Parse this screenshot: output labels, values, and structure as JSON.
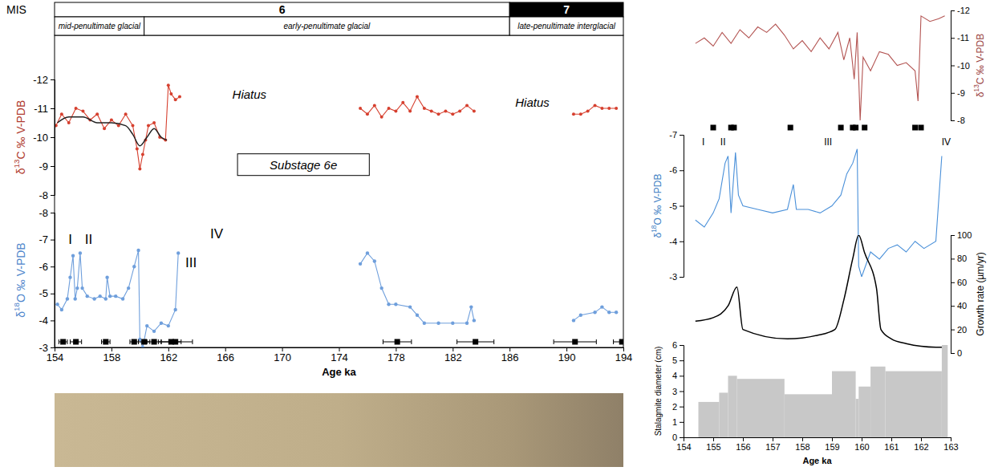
{
  "chart_data": [
    {
      "type": "timeline",
      "title": "MIS",
      "xlim": [
        154,
        194
      ],
      "stages": [
        {
          "label": "6",
          "start": 154,
          "end": 186,
          "color": "#ffffff"
        },
        {
          "label": "7",
          "start": 186,
          "end": 194,
          "color": "#000000"
        }
      ],
      "substages": [
        {
          "label": "mid-penultimate glacial",
          "start": 154,
          "end": 160.3
        },
        {
          "label": "early-penultimate glacial",
          "start": 160.3,
          "end": 186
        },
        {
          "label": "late-penultimate interglacial",
          "start": 186,
          "end": 194
        }
      ]
    },
    {
      "type": "line",
      "y_label": "δ13C ‰ V-PDB",
      "xlim": [
        154,
        194
      ],
      "ylim": [
        -8,
        -12
      ],
      "yticks": [
        -12,
        -11,
        -10,
        -9,
        -8
      ],
      "series": [
        {
          "color": "#d6402f",
          "marker": "circle",
          "line_style": "solid",
          "x": [
            154.1,
            154.5,
            155.0,
            155.5,
            156.0,
            156.5,
            157.0,
            157.5,
            158.0,
            158.5,
            159.0,
            159.5,
            159.8,
            160.0,
            160.2,
            160.4,
            160.6,
            161.0,
            161.4,
            161.8,
            162.0,
            162.2,
            162.5,
            162.8,
            169,
            175.5,
            176.0,
            176.5,
            177.0,
            177.5,
            178.0,
            178.5,
            179.0,
            179.5,
            180.0,
            180.5,
            181.0,
            181.5,
            182.0,
            182.5,
            183.0,
            183.5,
            187,
            190.5,
            191.0,
            191.5,
            192.0,
            192.5,
            193.0,
            193.5
          ],
          "values": [
            -10.4,
            -10.8,
            -10.5,
            -11.0,
            -10.9,
            -10.6,
            -10.8,
            -10.3,
            -10.6,
            -10.4,
            -10.8,
            -10.4,
            -9.6,
            -8.9,
            -9.4,
            -9.9,
            -10.4,
            -10.5,
            -10.0,
            -9.9,
            -11.8,
            -11.5,
            -11.3,
            -11.4,
            null,
            -11.0,
            -10.8,
            -11.1,
            -10.7,
            -11.0,
            -10.9,
            -11.2,
            -10.9,
            -11.4,
            -11.0,
            -10.9,
            -10.8,
            -10.9,
            -10.8,
            -10.9,
            -11.1,
            -10.9,
            null,
            -10.8,
            -10.8,
            -10.9,
            -11.1,
            -11.0,
            -11.0,
            -11.0
          ]
        },
        {
          "color": "#222222",
          "line_style": "smooth",
          "x": [
            154.2,
            155.0,
            156.0,
            157.0,
            158.0,
            159.0,
            159.5,
            160.0,
            160.5,
            161.0,
            161.5,
            161.9
          ],
          "values": [
            -10.5,
            -10.7,
            -10.7,
            -10.5,
            -10.5,
            -10.4,
            -10.1,
            -9.7,
            -10.0,
            -10.3,
            -10.0,
            -9.9
          ]
        }
      ],
      "notes": [
        {
          "text": "Hiatus",
          "x": 167.7,
          "y": -11.5
        },
        {
          "text": "Hiatus",
          "x": 187.6,
          "y": -11.2
        }
      ],
      "boxed_notes": [
        {
          "text": "Substage 6e",
          "x": 171.5,
          "y": -9.05
        }
      ]
    },
    {
      "type": "line",
      "x_label": "Age ka",
      "y_label": "δ18O ‰ V-PDB",
      "xlim": [
        154,
        194
      ],
      "xticks": [
        154,
        158,
        162,
        166,
        170,
        174,
        178,
        182,
        186,
        190,
        194
      ],
      "ylim": [
        -3,
        -8
      ],
      "yticks": [
        -8,
        -7,
        -6,
        -5,
        -4,
        -3
      ],
      "series": [
        {
          "color": "#6f9fdc",
          "marker": "circle",
          "line_style": "solid",
          "x": [
            154.2,
            154.5,
            154.9,
            155.1,
            155.3,
            155.45,
            155.6,
            155.8,
            155.95,
            156.3,
            156.8,
            157.2,
            157.6,
            157.7,
            157.9,
            158.3,
            158.8,
            159.2,
            159.6,
            159.9,
            160.0,
            160.2,
            160.5,
            161.0,
            161.5,
            162.0,
            162.5,
            162.7,
            169,
            175.5,
            176.0,
            176.5,
            177.0,
            177.5,
            178.0,
            179.0,
            179.5,
            180.0,
            181.0,
            182.0,
            183.0,
            183.3,
            183.5,
            187,
            190.5,
            191.0,
            192.0,
            192.5,
            193.0,
            193.5
          ],
          "values": [
            -4.6,
            -4.4,
            -4.8,
            -5.6,
            -6.4,
            -4.8,
            -5.2,
            -6.5,
            -5.2,
            -4.9,
            -4.8,
            -4.9,
            -4.8,
            -5.6,
            -4.9,
            -4.9,
            -4.8,
            -5.2,
            -6.0,
            -6.6,
            -3.3,
            -3.0,
            -3.8,
            -3.6,
            -3.9,
            -3.8,
            -4.4,
            -6.5,
            null,
            -6.1,
            -6.5,
            -6.2,
            -5.2,
            -4.6,
            -4.6,
            -4.5,
            -4.2,
            -3.9,
            -3.9,
            -3.9,
            -3.9,
            -4.5,
            -4.0,
            null,
            -4.0,
            -4.2,
            -4.3,
            -4.5,
            -4.3,
            -4.3
          ]
        }
      ],
      "dates": {
        "x": [
          154.6,
          155.5,
          157.6,
          159.6,
          160.3,
          161.0,
          162.2,
          162.5,
          178.1,
          183.6,
          190.6,
          193.9
        ],
        "errors": [
          0.3,
          0.4,
          0.3,
          0.3,
          0.4,
          0.5,
          0.7,
          1.2,
          1.0,
          1.3,
          1.5,
          0.6
        ]
      },
      "annotations": [
        {
          "text": "I",
          "x": 155.1,
          "y": -7.0
        },
        {
          "text": "II",
          "x": 156.4,
          "y": -7.0
        },
        {
          "text": "III",
          "x": 163.6,
          "y": -6.15
        },
        {
          "text": "IV",
          "x": 165.4,
          "y": -7.2
        }
      ]
    },
    {
      "type": "line",
      "y2_label": "δ13C ‰ V-PDB",
      "xlim": [
        154,
        163
      ],
      "y2lim": [
        -8,
        -12
      ],
      "y2ticks": [
        -12,
        -11,
        -10,
        -9,
        -8
      ],
      "series": [
        {
          "color": "#b35452",
          "axis": "y2",
          "line_style": "solid",
          "x": [
            154.4,
            154.7,
            155.0,
            155.3,
            155.6,
            155.9,
            156.2,
            156.5,
            156.8,
            157.1,
            157.4,
            157.7,
            158.0,
            158.3,
            158.6,
            158.9,
            159.2,
            159.4,
            159.6,
            159.75,
            159.85,
            159.95,
            160.05,
            160.3,
            160.6,
            160.9,
            161.2,
            161.5,
            161.8,
            161.9,
            162.0,
            162.3,
            162.6,
            162.8
          ],
          "values": [
            -10.8,
            -11.0,
            -10.7,
            -11.2,
            -10.8,
            -11.3,
            -11.0,
            -11.4,
            -11.2,
            -11.5,
            -11.1,
            -10.6,
            -10.9,
            -10.5,
            -11.0,
            -10.6,
            -11.2,
            -10.2,
            -11.0,
            -9.5,
            -11.2,
            -8.0,
            -10.3,
            -9.8,
            -10.5,
            -10.4,
            -10.0,
            -10.1,
            -9.8,
            -8.7,
            -11.8,
            -11.6,
            -11.7,
            -11.8
          ]
        }
      ],
      "dates": {
        "x": [
          155.0,
          155.6,
          155.7,
          157.6,
          159.3,
          159.7,
          159.8,
          160.1,
          161.8,
          162.0
        ]
      }
    },
    {
      "type": "line",
      "y_label": "δ18O ‰ V-PDB",
      "xlim": [
        154,
        163
      ],
      "ylim": [
        -3,
        -7
      ],
      "yticks": [
        -7,
        -6,
        -5,
        -4,
        -3
      ],
      "series": [
        {
          "color": "#4a90d9",
          "line_style": "solid",
          "x": [
            154.4,
            154.7,
            155.0,
            155.2,
            155.4,
            155.5,
            155.6,
            155.75,
            155.85,
            156.0,
            156.5,
            157.0,
            157.5,
            157.7,
            157.8,
            158.2,
            158.6,
            159.0,
            159.3,
            159.5,
            159.7,
            159.85,
            159.9,
            160.0,
            160.3,
            160.6,
            160.9,
            161.2,
            161.5,
            161.8,
            162.1,
            162.5,
            162.7
          ],
          "values": [
            -4.6,
            -4.4,
            -4.8,
            -5.2,
            -6.2,
            -6.4,
            -4.8,
            -6.5,
            -5.3,
            -5.0,
            -4.9,
            -4.8,
            -4.9,
            -5.6,
            -4.9,
            -4.9,
            -4.8,
            -5.0,
            -5.3,
            -5.9,
            -6.2,
            -6.6,
            -3.3,
            -3.0,
            -3.7,
            -3.5,
            -3.8,
            -3.9,
            -3.7,
            -4.0,
            -3.8,
            -4.0,
            -6.4
          ]
        }
      ],
      "annotations": [
        {
          "text": "I",
          "x": 154.67,
          "y": -6.8
        },
        {
          "text": "II",
          "x": 155.33,
          "y": -6.8
        },
        {
          "text": "III",
          "x": 158.87,
          "y": -6.8
        },
        {
          "text": "IV",
          "x": 162.85,
          "y": -6.8
        }
      ]
    },
    {
      "type": "line",
      "y2_label": "Growth rate (µm/yr)",
      "xlim": [
        154,
        163
      ],
      "y2lim": [
        0,
        100
      ],
      "y2ticks": [
        0,
        20,
        40,
        60,
        80,
        100
      ],
      "series": [
        {
          "color": "#000000",
          "axis": "y2",
          "line_style": "smooth",
          "x": [
            154.4,
            155.0,
            155.5,
            155.8,
            156.0,
            157.5,
            158.5,
            159.1,
            159.4,
            159.7,
            159.9,
            160.1,
            160.5,
            160.65,
            161.0,
            161.5,
            162.5,
            162.8
          ],
          "values": [
            27,
            30,
            40,
            56,
            20,
            12,
            15,
            20,
            45,
            80,
            100,
            85,
            55,
            20,
            12,
            8,
            5,
            5
          ]
        }
      ]
    },
    {
      "type": "bar",
      "x_label": "Age ka",
      "y_label": "Stalagmite diameter (cm)",
      "xlim": [
        154,
        163
      ],
      "xticks": [
        154,
        155,
        156,
        157,
        158,
        159,
        160,
        161,
        162,
        163
      ],
      "ylim": [
        0,
        6
      ],
      "yticks": [
        0,
        1,
        2,
        3,
        4,
        5,
        6
      ],
      "series": [
        {
          "color": "#c8c8c8",
          "x_start": [
            154.5,
            155.2,
            155.5,
            155.8,
            157.4,
            159.0,
            159.8,
            159.9,
            160.3,
            160.8,
            162.7
          ],
          "x_end": [
            155.2,
            155.5,
            155.8,
            157.4,
            159.0,
            159.8,
            159.9,
            160.3,
            160.8,
            162.7,
            162.9
          ],
          "values": [
            2.3,
            2.9,
            4.0,
            3.8,
            2.8,
            4.3,
            2.5,
            3.3,
            4.6,
            4.3,
            6.0
          ]
        }
      ]
    }
  ]
}
